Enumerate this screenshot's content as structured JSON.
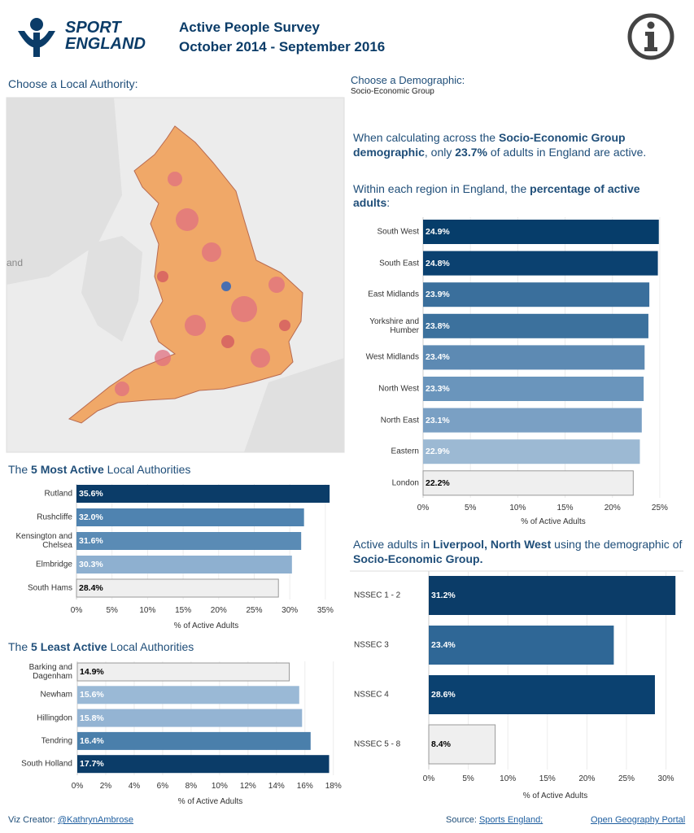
{
  "header": {
    "logo": [
      "SPORT",
      "ENGLAND"
    ],
    "title": "Active People Survey",
    "subtitle": "October 2014 - September 2016"
  },
  "map": {
    "prompt": "Choose a Local Authority:",
    "label": "and"
  },
  "demographic": {
    "prompt": "Choose a Demographic:",
    "selected": "Socio-Economic Group"
  },
  "summary": [
    "When calculating across the ",
    "Socio-Economic Group demographic",
    ", only ",
    "23.7%",
    " of adults in England are active."
  ],
  "chart_data": [
    {
      "type": "bar",
      "orientation": "horizontal",
      "title": [
        "Within each region in England, the ",
        "percentage of active adults",
        ":"
      ],
      "categories": [
        "South West",
        "South East",
        "East Midlands",
        "Yorkshire and Humber",
        "West Midlands",
        "North West",
        "North East",
        "Eastern",
        "London"
      ],
      "values": [
        24.9,
        24.8,
        23.9,
        23.8,
        23.4,
        23.3,
        23.1,
        22.9,
        22.2
      ],
      "value_labels": [
        "24.9%",
        "24.8%",
        "23.9%",
        "23.8%",
        "23.4%",
        "23.3%",
        "23.1%",
        "22.9%",
        "22.2%"
      ],
      "colors": [
        "#063d6a",
        "#0b4170",
        "#3a6f9c",
        "#3c719d",
        "#5d8ab3",
        "#6a95bc",
        "#7aa0c4",
        "#9cb9d3",
        "#efefef"
      ],
      "xlim": [
        0,
        27.5
      ],
      "xticks": [
        {
          "value": 0,
          "label": "0%"
        },
        {
          "value": 5,
          "label": "5%"
        },
        {
          "value": 10,
          "label": "10%"
        },
        {
          "value": 15,
          "label": "15%"
        },
        {
          "value": 20,
          "label": "20%"
        },
        {
          "value": 25,
          "label": "25%"
        }
      ],
      "xlabel": "% of Active Adults",
      "grid": true
    },
    {
      "type": "bar",
      "orientation": "horizontal",
      "title": [
        "The ",
        "5 Most Active",
        " Local Authorities"
      ],
      "categories": [
        "Rutland",
        "Rushcliffe",
        "Kensington and Chelsea",
        "Elmbridge",
        "South Hams"
      ],
      "values": [
        35.6,
        32.0,
        31.6,
        30.3,
        28.4
      ],
      "value_labels": [
        "35.6%",
        "32.0%",
        "31.6%",
        "30.3%",
        "28.4%"
      ],
      "colors": [
        "#0b3c68",
        "#4f83b0",
        "#5a8bb5",
        "#8eb0d0",
        "#efefef"
      ],
      "xlim": [
        0,
        36.5
      ],
      "xticks": [
        {
          "value": 0,
          "label": "0%"
        },
        {
          "value": 5,
          "label": "5%"
        },
        {
          "value": 10,
          "label": "10%"
        },
        {
          "value": 15,
          "label": "15%"
        },
        {
          "value": 20,
          "label": "20%"
        },
        {
          "value": 25,
          "label": "25%"
        },
        {
          "value": 30,
          "label": "30%"
        },
        {
          "value": 35,
          "label": "35%"
        }
      ],
      "xlabel": "% of Active Adults",
      "grid": true
    },
    {
      "type": "bar",
      "orientation": "horizontal",
      "title": [
        "The ",
        "5 Least Active",
        " Local Authorities"
      ],
      "categories": [
        "Barking and Dagenham",
        "Newham",
        "Hillingdon",
        "Tendring",
        "South Holland"
      ],
      "values": [
        14.9,
        15.6,
        15.8,
        16.4,
        17.7
      ],
      "value_labels": [
        "14.9%",
        "15.6%",
        "15.8%",
        "16.4%",
        "17.7%"
      ],
      "colors": [
        "#efefef",
        "#9ab9d6",
        "#94b4d3",
        "#4a7fab",
        "#0b3c68"
      ],
      "xlim": [
        0,
        18.7
      ],
      "xticks": [
        {
          "value": 0,
          "label": "0%"
        },
        {
          "value": 2,
          "label": "2%"
        },
        {
          "value": 4,
          "label": "4%"
        },
        {
          "value": 6,
          "label": "6%"
        },
        {
          "value": 8,
          "label": "8%"
        },
        {
          "value": 10,
          "label": "10%"
        },
        {
          "value": 12,
          "label": "12%"
        },
        {
          "value": 14,
          "label": "14%"
        },
        {
          "value": 16,
          "label": "16%"
        },
        {
          "value": 18,
          "label": "18%"
        }
      ],
      "xlabel": "% of Active Adults",
      "grid": true
    },
    {
      "type": "bar",
      "orientation": "horizontal",
      "title": [
        "Active adults in ",
        "Liverpool, North West",
        " using the demographic of ",
        "Socio-Economic Group."
      ],
      "categories": [
        "NSSEC 1 - 2",
        "NSSEC 3",
        "NSSEC 4",
        "NSSEC 5 - 8"
      ],
      "values": [
        31.2,
        23.4,
        28.6,
        8.4
      ],
      "value_labels": [
        "31.2%",
        "23.4%",
        "28.6%",
        "8.4%"
      ],
      "colors": [
        "#0b3c68",
        "#2f6796",
        "#0b4170",
        "#efefef"
      ],
      "xlim": [
        0,
        32
      ],
      "xticks": [
        {
          "value": 0,
          "label": "0%"
        },
        {
          "value": 5,
          "label": "5%"
        },
        {
          "value": 10,
          "label": "10%"
        },
        {
          "value": 15,
          "label": "15%"
        },
        {
          "value": 20,
          "label": "20%"
        },
        {
          "value": 25,
          "label": "25%"
        },
        {
          "value": 30,
          "label": "30%"
        }
      ],
      "xlabel": "% of Active Adults",
      "grid": true
    }
  ],
  "footer": {
    "creator_label": "Viz Creator: ",
    "creator": "@KathrynAmbrose",
    "source_label": "Source: ",
    "sources": [
      "Sports England;",
      "Open Geography Portal"
    ]
  }
}
